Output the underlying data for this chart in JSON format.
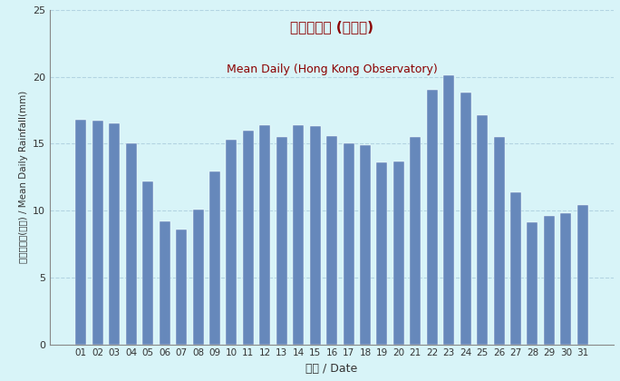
{
  "categories": [
    "01",
    "02",
    "03",
    "04",
    "05",
    "06",
    "07",
    "08",
    "09",
    "10",
    "11",
    "12",
    "13",
    "14",
    "15",
    "16",
    "17",
    "18",
    "19",
    "20",
    "21",
    "22",
    "23",
    "24",
    "25",
    "26",
    "27",
    "28",
    "29",
    "30",
    "31"
  ],
  "values": [
    16.8,
    16.7,
    16.5,
    15.0,
    12.2,
    9.2,
    8.6,
    10.1,
    12.9,
    15.3,
    16.0,
    16.4,
    15.5,
    16.4,
    16.3,
    15.6,
    15.0,
    14.9,
    13.6,
    13.7,
    15.5,
    19.0,
    20.1,
    18.8,
    17.1,
    15.5,
    11.4,
    9.1,
    9.6,
    9.8,
    10.4
  ],
  "bar_color": "#6688bb",
  "bg_color": "#d8f4f8",
  "title_zh": "平均日雨量 (天文台)",
  "title_en": "Mean Daily (Hong Kong Observatory)",
  "title_color": "#8b0000",
  "xlabel": "日期 / Date",
  "ylabel": "平均日雨量(毫米) / Mean Daily Rainfall(mm)",
  "ylim": [
    0,
    25
  ],
  "yticks": [
    0,
    5,
    10,
    15,
    20,
    25
  ],
  "grid_color": "#aaccdd",
  "tick_color": "#333333",
  "spine_color": "#888888",
  "bar_width": 0.65
}
